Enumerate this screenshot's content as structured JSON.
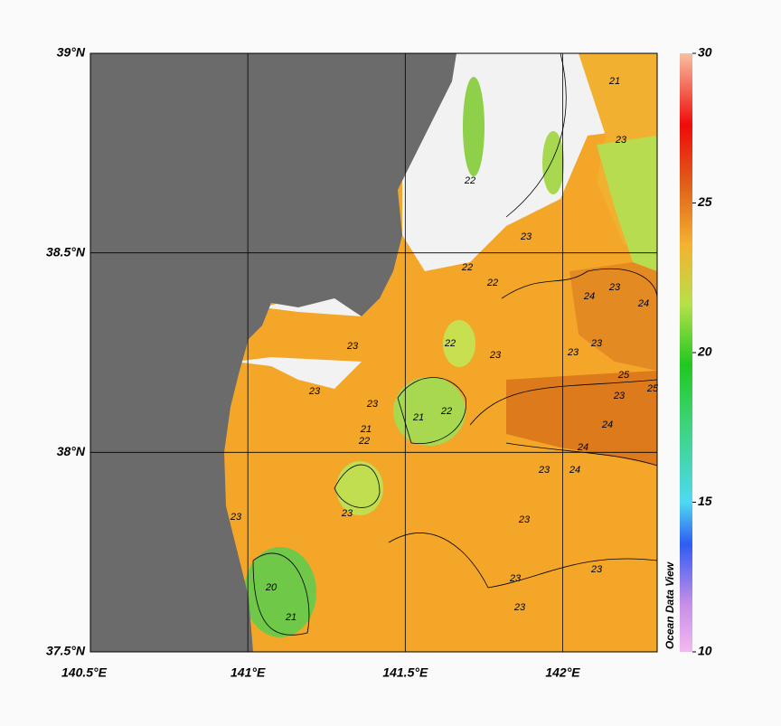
{
  "map": {
    "xlim": [
      140.5,
      142.3
    ],
    "ylim": [
      37.5,
      39
    ],
    "xticks": [
      {
        "value": 140.5,
        "label": "140.5°E"
      },
      {
        "value": 141,
        "label": "141°E"
      },
      {
        "value": 141.5,
        "label": "141.5°E"
      },
      {
        "value": 142,
        "label": "142°E"
      }
    ],
    "yticks": [
      {
        "value": 37.5,
        "label": "37.5°N"
      },
      {
        "value": 38,
        "label": "38°N"
      },
      {
        "value": 38.5,
        "label": "38.5°N"
      },
      {
        "value": 39,
        "label": "39°N"
      }
    ],
    "colorbar": {
      "range": [
        10,
        30
      ],
      "ticks": [
        10,
        15,
        20,
        25,
        30
      ]
    },
    "watermark": "Ocean Data View",
    "contour_labels": [
      21,
      23,
      22,
      23,
      22,
      22,
      24,
      23,
      24,
      23,
      23,
      25,
      23,
      24,
      25,
      24,
      23,
      24,
      22,
      21,
      22,
      21,
      22,
      23,
      23,
      23,
      23,
      23,
      23,
      23,
      20,
      21,
      23,
      23,
      23
    ]
  }
}
